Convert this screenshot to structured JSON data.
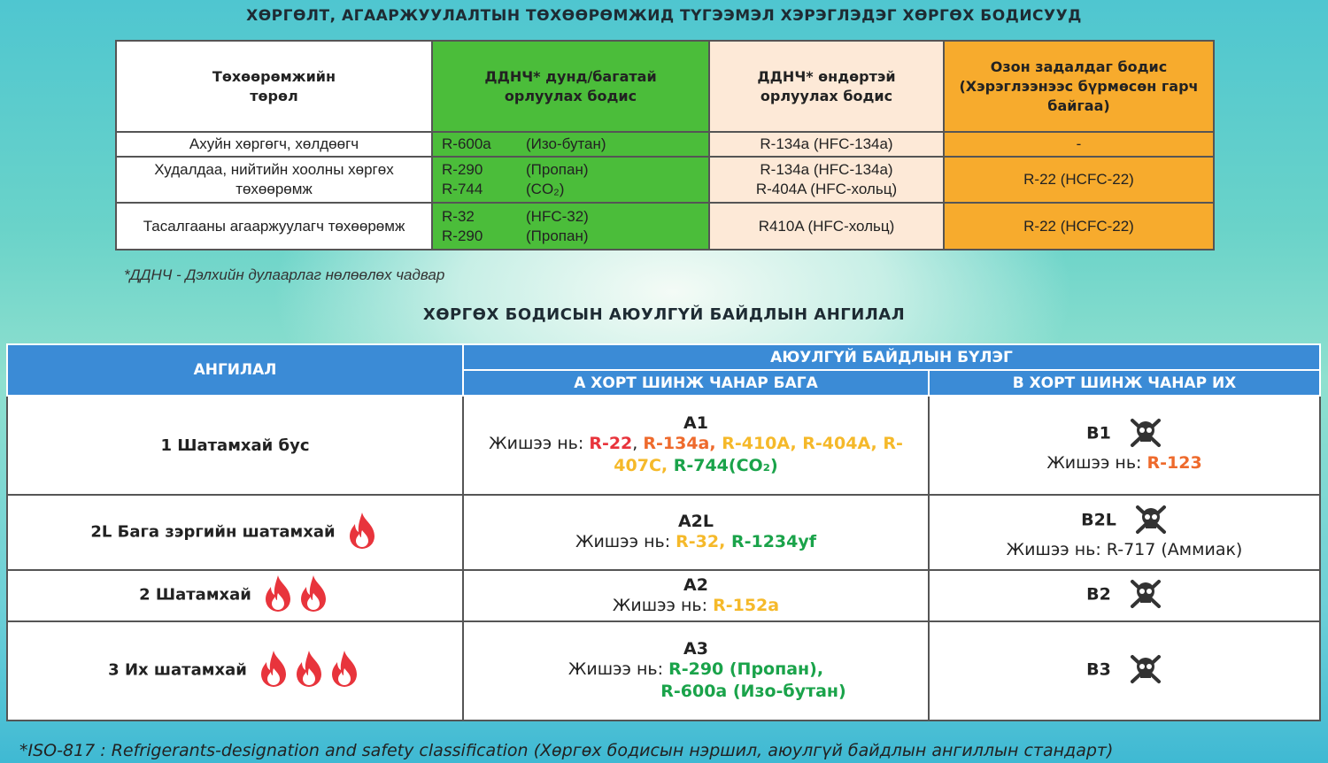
{
  "title1": "ХӨРГӨЛТ, АГААРЖУУЛАЛТЫН ТӨХӨӨРӨМЖИД ТҮГЭЭМЭЛ ХЭРЭГЛЭДЭГ ХӨРГӨХ БОДИСУУД",
  "table1": {
    "headers": [
      "Төхөөрөмжийн төрөл",
      "ДДНЧ* дунд/багатай орлуулах бодис",
      "ДДНЧ* өндөртэй орлуулах бодис",
      "Озон задалдаг бодис (Хэрэглээнээс бүрмөсөн гарч байгаа)"
    ],
    "rows": [
      {
        "device": "Ахуйн хөргөгч, хөлдөөгч",
        "low": [
          [
            "R-600a",
            "(Изо-бутан)"
          ]
        ],
        "high": [
          "R-134a (HFC-134a)"
        ],
        "ozone": "-"
      },
      {
        "device": "Худалдаа, нийтийн хоолны хөргөх төхөөрөмж",
        "low": [
          [
            "R-290",
            "(Пропан)"
          ],
          [
            "R-744",
            "(CO₂)"
          ]
        ],
        "high": [
          "R-134a (HFC-134a)",
          "R-404A (HFC-хольц)"
        ],
        "ozone": "R-22 (HCFC-22)"
      },
      {
        "device": "Тасалгааны агааржуулагч төхөөрөмж",
        "low": [
          [
            "R-32",
            "(HFC-32)"
          ],
          [
            "R-290",
            "(Пропан)"
          ]
        ],
        "high": [
          "R410A  (HFC-хольц)"
        ],
        "ozone": "R-22 (HCFC-22)"
      }
    ]
  },
  "footnote1": "*ДДНЧ - Дэлхийн дулаарлаг нөлөөлөх чадвар",
  "title2": "ХӨРГӨХ БОДИСЫН АЮУЛГҮЙ БАЙДЛЫН АНГИЛАЛ",
  "table2": {
    "h_class": "АНГИЛАЛ",
    "h_group": "АЮУЛГҮЙ БАЙДЛЫН БҮЛЭГ",
    "h_a": "А ХОРТ ШИНЖ ЧАНАР БАГА",
    "h_b": "В ХОРТ ШИНЖ ЧАНАР ИХ",
    "example_label": "Жишээ нь:",
    "rows": [
      {
        "class": "1 Шатамхай бус",
        "flames": 0,
        "a_code": "A1",
        "a_ex": [
          [
            "R-22",
            "#e8343c"
          ],
          [
            ", ",
            "#222"
          ],
          [
            "R-134a,",
            "#ee6a2c"
          ],
          [
            " R-410A, R-404A, R-407C,",
            "#f5b92a"
          ],
          [
            " R-744",
            "#1aa34a"
          ],
          [
            "(CO₂)",
            "#1aa34a"
          ]
        ],
        "b_code": "B1",
        "b_ex": [
          [
            "R-123",
            "#ee6a2c"
          ]
        ]
      },
      {
        "class": "2L Бага зэргийн шатамхай",
        "flames": 1,
        "a_code": "A2L",
        "a_ex": [
          [
            "R-32,",
            "#f5b92a"
          ],
          [
            " R-1234yf",
            "#1aa34a"
          ]
        ],
        "b_code": "B2L",
        "b_ex": [
          [
            "R-717 (Аммиак)",
            "#222"
          ]
        ]
      },
      {
        "class": "2 Шатамхай",
        "flames": 2,
        "a_code": "A2",
        "a_ex": [
          [
            "R-152a",
            "#f5b92a"
          ]
        ],
        "b_code": "B2",
        "b_ex": []
      },
      {
        "class": "3 Их шатамхай",
        "flames": 3,
        "a_code": "A3",
        "a_ex": [
          [
            "R-290 (Пропан),",
            "#1aa34a"
          ],
          [
            "R-600a (Изо-бутан)",
            "#1aa34a"
          ]
        ],
        "b_code": "B3",
        "b_ex": []
      }
    ]
  },
  "footnote2": "*ISO-817 : Refrigerants-designation and safety classification (Хөргөх бодисын нэршил, аюулгүй байдлын ангиллын стандарт)",
  "colors": {
    "green": "#4bbd3a",
    "peach": "#fde9d7",
    "orange": "#f7ab2d",
    "header_blue": "#3b8bd6",
    "flame": "#e8343c"
  },
  "icons": {
    "flammability": "flame-icon",
    "toxicity": "skull-crossbones-icon"
  }
}
